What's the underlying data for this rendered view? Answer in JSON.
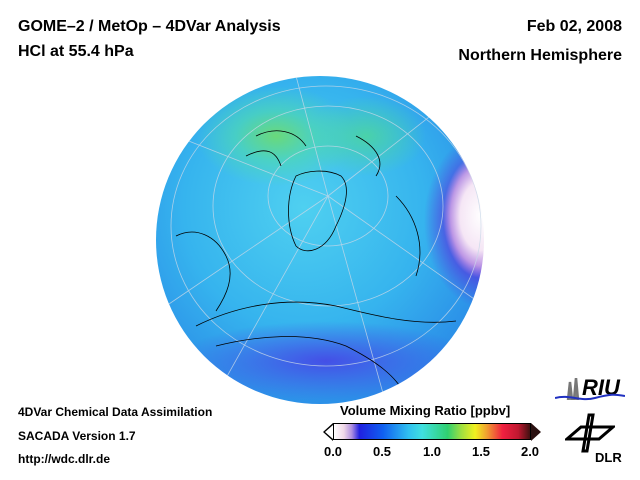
{
  "header": {
    "title": "GOME–2 / MetOp – 4DVar Analysis",
    "subtitle": "HCl at 55.4 hPa",
    "date": "Feb 02, 2008",
    "region": "Northern Hemisphere"
  },
  "footer": {
    "line1": "4DVar Chemical Data Assimilation",
    "line2": "SACADA Version 1.7",
    "line3": "http://wdc.dlr.de"
  },
  "colorbar": {
    "title": "Volume Mixing Ratio [ppbv]",
    "ticks": [
      "0.0",
      "0.5",
      "1.0",
      "1.5",
      "2.0"
    ],
    "range": [
      0.0,
      2.0
    ]
  },
  "logos": {
    "riu": "RIU",
    "dlr": "DLR"
  }
}
